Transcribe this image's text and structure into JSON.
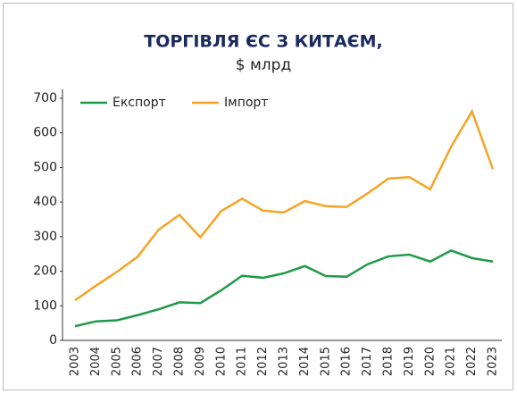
{
  "chart_data": {
    "type": "line",
    "title": "ТОРГІВЛЯ ЄС З КИТАЄМ,",
    "subtitle": "$ млрд",
    "categories": [
      "2003",
      "2004",
      "2005",
      "2006",
      "2007",
      "2008",
      "2009",
      "2010",
      "2011",
      "2012",
      "2013",
      "2014",
      "2015",
      "2016",
      "2017",
      "2018",
      "2019",
      "2020",
      "2021",
      "2022",
      "2023"
    ],
    "series": [
      {
        "name": "Експорт",
        "color": "#1f9a48",
        "values": [
          41,
          55,
          58,
          73,
          90,
          110,
          108,
          145,
          187,
          181,
          194,
          215,
          186,
          184,
          220,
          243,
          248,
          228,
          260,
          238,
          228
        ]
      },
      {
        "name": "Імпорт",
        "color": "#f5a425",
        "values": [
          116,
          158,
          198,
          242,
          320,
          363,
          298,
          374,
          410,
          375,
          370,
          403,
          388,
          386,
          425,
          468,
          472,
          437,
          560,
          662,
          495
        ]
      }
    ],
    "ylim": [
      0,
      700
    ],
    "yticks": [
      0,
      100,
      200,
      300,
      400,
      500,
      600,
      700
    ],
    "legend": "top-left"
  }
}
